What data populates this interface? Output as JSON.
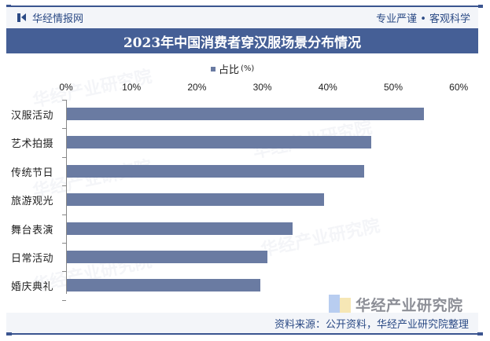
{
  "header": {
    "brand": "华经情报网",
    "slogan": "专业严谨 • 客观科学"
  },
  "title": "2023年中国消费者穿汉服场景分布情况",
  "legend": {
    "label": "占比",
    "unit": "(%)"
  },
  "x_ticks": [
    "0%",
    "10%",
    "20%",
    "30%",
    "40%",
    "50%",
    "60%"
  ],
  "categories": [
    "汉服活动",
    "艺术拍摄",
    "传统节日",
    "旅游观光",
    "舞台表演",
    "日常活动",
    "婚庆典礼"
  ],
  "footer": {
    "source": "资料来源：公开资料，华经产业研究院整理"
  },
  "watermark": {
    "text": "华经产业研究院",
    "url": "www.huaon.com"
  },
  "colors": {
    "bar": "#6a7ba2",
    "title_bg": "#455f96",
    "brand": "#2b4a85"
  },
  "chart_data": {
    "type": "bar",
    "orientation": "horizontal",
    "title": "2023年中国消费者穿汉服场景分布情况",
    "categories": [
      "汉服活动",
      "艺术拍摄",
      "传统节日",
      "旅游观光",
      "舞台表演",
      "日常活动",
      "婚庆典礼"
    ],
    "series": [
      {
        "name": "占比(%)",
        "values": [
          54.6,
          46.5,
          45.4,
          39.3,
          34.5,
          30.6,
          29.6
        ]
      }
    ],
    "xlabel": "",
    "ylabel": "",
    "xlim": [
      0,
      60
    ],
    "x_ticks": [
      "0%",
      "10%",
      "20%",
      "30%",
      "40%",
      "50%",
      "60%"
    ],
    "grid": false,
    "legend_position": "top",
    "axis_position": "top",
    "source": "资料来源：公开资料，华经产业研究院整理"
  }
}
